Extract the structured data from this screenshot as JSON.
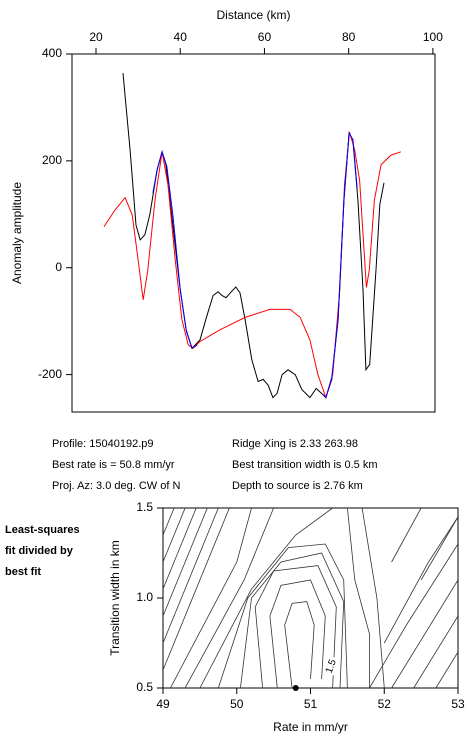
{
  "chart_data": [
    {
      "type": "line",
      "x_label": "Distance (km)",
      "y_label": "Anomaly amplitude",
      "xlim": [
        14.3,
        100.5
      ],
      "ylim": [
        -270,
        400
      ],
      "xticks": [
        20,
        40,
        60,
        80,
        100
      ],
      "yticks": [
        -200,
        0,
        200,
        400
      ],
      "series": [
        {
          "color": "#000000",
          "x": [
            26.4,
            28.1,
            29.5,
            30.5,
            31.6,
            32.8,
            34.5,
            35.7,
            36.6,
            38.1,
            40,
            41.4,
            42.8,
            44.7,
            46.4,
            47.8,
            49,
            49.9,
            50.9,
            52.1,
            53.2,
            54.2,
            55.4,
            57,
            58.5,
            59.7,
            60.9,
            62,
            63,
            64.2,
            65.6,
            67.3,
            68.9,
            70.8,
            72.3,
            73.4,
            74.6,
            76,
            77.5,
            78.9,
            80.1,
            81,
            82.2,
            83.4,
            84.1,
            85,
            86.5,
            87.4,
            88.4
          ],
          "values": [
            364,
            220,
            80,
            52,
            62,
            100,
            183,
            217,
            193,
            90,
            -41,
            -116,
            -151,
            -135,
            -88,
            -52,
            -45,
            -52,
            -56,
            -45,
            -36,
            -47,
            -97,
            -172,
            -213,
            -209,
            -220,
            -243,
            -235,
            -200,
            -191,
            -200,
            -228,
            -243,
            -226,
            -234,
            -243,
            -209,
            -97,
            127,
            252,
            239,
            127,
            -41,
            -191,
            -181,
            -4,
            118,
            159
          ]
        },
        {
          "color": "#ff0000",
          "x": [
            21.9,
            24.5,
            26.9,
            28.6,
            30,
            31.2,
            32.3,
            34,
            35.7,
            37.1,
            38.8,
            40.4,
            41.9,
            43,
            44.7,
            49.5,
            55.4,
            61.3,
            66.1,
            68.5,
            70.8,
            72.7,
            74.6,
            76.2,
            77.9,
            79,
            80.2,
            81.4,
            82.6,
            83.5,
            84.2,
            84.9,
            86.1,
            87.7,
            90.1,
            92.4
          ],
          "values": [
            77,
            108,
            131,
            99,
            15,
            -60,
            -4,
            127,
            217,
            155,
            15,
            -97,
            -144,
            -151,
            -138,
            -116,
            -93,
            -78,
            -78,
            -93,
            -135,
            -200,
            -243,
            -200,
            -41,
            155,
            254,
            221,
            164,
            52,
            -37,
            -4,
            127,
            193,
            211,
            217
          ]
        },
        {
          "color": "#0000ff",
          "x": [
            33.5,
            34.5,
            35.7,
            36.8,
            38.3,
            40,
            41.5,
            42.8,
            44,
            null,
            74,
            74.6,
            76,
            77.5,
            78.9,
            80.1,
            81,
            82
          ],
          "values": [
            140,
            183,
            217,
            190,
            95,
            -40,
            -120,
            -150,
            -145,
            null,
            -238,
            -243,
            -205,
            -95,
            130,
            252,
            240,
            150
          ]
        }
      ],
      "annotations": [
        "Profile: 15040192.p9",
        "Best rate is = 50.8 mm/yr",
        "Proj. Az: 3.0 deg. CW of N",
        "Ridge Xing is 2.33 263.98",
        "Best transition width is 0.5 km",
        "Depth to source is    2.76 km"
      ]
    },
    {
      "type": "contour",
      "x_label": "Rate in mm/yr",
      "y_label": "Transition width in km",
      "xlim": [
        49,
        53
      ],
      "ylim": [
        0.5,
        1.5
      ],
      "xticks": [
        49,
        50,
        51,
        52,
        53
      ],
      "yticks": [
        0.5,
        {
          "value": 1,
          "label": "1.0"
        },
        1.5
      ],
      "contours": [
        {
          "x": [
            49,
            49.15
          ],
          "y": [
            1.35,
            1.5
          ]
        },
        {
          "x": [
            49,
            49.3
          ],
          "y": [
            1.2,
            1.5
          ]
        },
        {
          "x": [
            49,
            49.45
          ],
          "y": [
            1.05,
            1.5
          ]
        },
        {
          "x": [
            49,
            49.6
          ],
          "y": [
            0.9,
            1.5
          ]
        },
        {
          "x": [
            49,
            49.75
          ],
          "y": [
            0.75,
            1.5
          ]
        },
        {
          "x": [
            49,
            49.9
          ],
          "y": [
            0.6,
            1.5
          ]
        },
        {
          "x": [
            49.1,
            50,
            50.2
          ],
          "y": [
            0.5,
            1.2,
            1.5
          ]
        },
        {
          "x": [
            49.3,
            50.1,
            50.5
          ],
          "y": [
            0.5,
            1.1,
            1.5
          ]
        },
        {
          "x": [
            49.5,
            50.2,
            50.8,
            51.3
          ],
          "y": [
            0.5,
            1.05,
            1.35,
            1.5
          ]
        },
        {
          "x": [
            49.75,
            50.15,
            50.7,
            51.2,
            51.45,
            51.5
          ],
          "y": [
            0.5,
            1.0,
            1.28,
            1.3,
            1.1,
            0.5
          ]
        },
        {
          "x": [
            50.05,
            50.2,
            50.6,
            51.15,
            51.45,
            51.4
          ],
          "y": [
            0.5,
            1.0,
            1.2,
            1.25,
            0.98,
            0.5
          ]
        },
        {
          "x": [
            50.35,
            50.25,
            50.5,
            51.1,
            51.35,
            51.3
          ],
          "y": [
            0.5,
            0.95,
            1.15,
            1.18,
            0.95,
            0.5
          ]
        },
        {
          "x": [
            50.55,
            50.45,
            50.6,
            51,
            51.2,
            51.15
          ],
          "y": [
            0.5,
            0.9,
            1.07,
            1.1,
            0.9,
            0.55
          ]
        },
        {
          "x": [
            50.75,
            50.65,
            50.75,
            50.95,
            51.05,
            51
          ],
          "y": [
            0.5,
            0.85,
            0.97,
            0.98,
            0.85,
            0.55
          ]
        },
        {
          "x": [
            51.5,
            51.6,
            51.8,
            51.8
          ],
          "y": [
            1.5,
            1.1,
            0.8,
            0.5
          ]
        },
        {
          "x": [
            51.7,
            51.9,
            52
          ],
          "y": [
            1.5,
            1.0,
            0.5
          ]
        },
        {
          "x": [
            51.8,
            52.3,
            53
          ],
          "y": [
            0.5,
            0.85,
            1.3
          ]
        },
        {
          "x": [
            52.1,
            53
          ],
          "y": [
            0.5,
            1.1
          ]
        },
        {
          "x": [
            52.4,
            53
          ],
          "y": [
            0.5,
            0.9
          ]
        },
        {
          "x": [
            52.7,
            53
          ],
          "y": [
            0.5,
            0.7
          ]
        },
        {
          "x": [
            52,
            52.6,
            53
          ],
          "y": [
            0.75,
            1.2,
            1.45
          ]
        },
        {
          "x": [
            52.1,
            52.5
          ],
          "y": [
            1.2,
            1.5
          ]
        },
        {
          "x": [
            52.5,
            53
          ],
          "y": [
            1.1,
            1.45
          ]
        }
      ],
      "contour_label": {
        "value": 1.5,
        "x": 51.28,
        "y": 0.62
      },
      "best_fit": {
        "x": 50.8,
        "y": 0.5
      },
      "annotations": [
        "Least-squares",
        "fit divided by",
        "best fit"
      ]
    }
  ]
}
